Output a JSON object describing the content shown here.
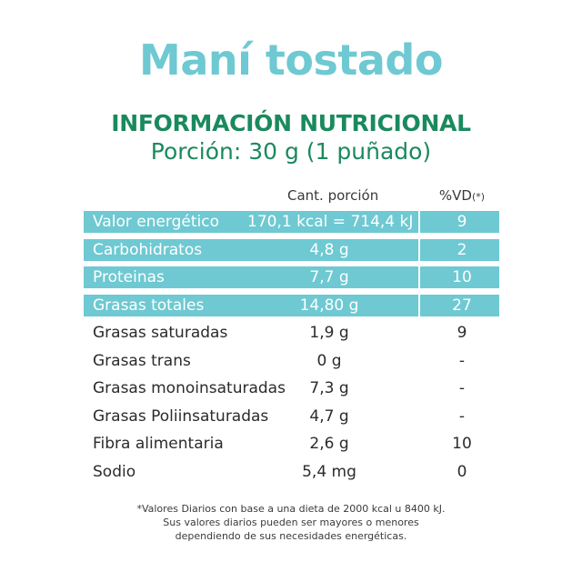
{
  "title": "Maní tostado",
  "heading": "INFORMACIÓN NUTRICIONAL",
  "portion": "Porción: 30 g (1 puñado)",
  "columns": {
    "amount": "Cant. porción",
    "vd": "%VD",
    "vd_mark": "(*)"
  },
  "rows": [
    {
      "nutrient": "Valor energético",
      "amount": "170,1 kcal = 714,4 kJ",
      "vd": "9",
      "highlight": true
    },
    {
      "nutrient": "Carbohidratos",
      "amount": "4,8 g",
      "vd": "2",
      "highlight": true
    },
    {
      "nutrient": "Proteinas",
      "amount": "7,7 g",
      "vd": "10",
      "highlight": true
    },
    {
      "nutrient": "Grasas totales",
      "amount": "14,80 g",
      "vd": "27",
      "highlight": true
    },
    {
      "nutrient": "Grasas saturadas",
      "amount": "1,9 g",
      "vd": "9",
      "highlight": false
    },
    {
      "nutrient": "Grasas trans",
      "amount": "0 g",
      "vd": "-",
      "highlight": false
    },
    {
      "nutrient": "Grasas monoinsaturadas",
      "amount": "7,3 g",
      "vd": "-",
      "highlight": false
    },
    {
      "nutrient": "Grasas Poliinsaturadas",
      "amount": "4,7 g",
      "vd": "-",
      "highlight": false
    },
    {
      "nutrient": "Fibra alimentaria",
      "amount": "2,6 g",
      "vd": "10",
      "highlight": false
    },
    {
      "nutrient": "Sodio",
      "amount": "5,4 mg",
      "vd": "0",
      "highlight": false
    }
  ],
  "footnote": [
    "*Valores Diarios con base a una dieta de 2000 kcal u 8400 kJ.",
    "Sus valores diarios pueden ser mayores o menores",
    "dependiendo de sus necesidades energéticas."
  ],
  "colors": {
    "title": "#6ec9d2",
    "heading": "#1a8a5e",
    "band": "#6ec9d2",
    "text": "#2b2b2b"
  }
}
